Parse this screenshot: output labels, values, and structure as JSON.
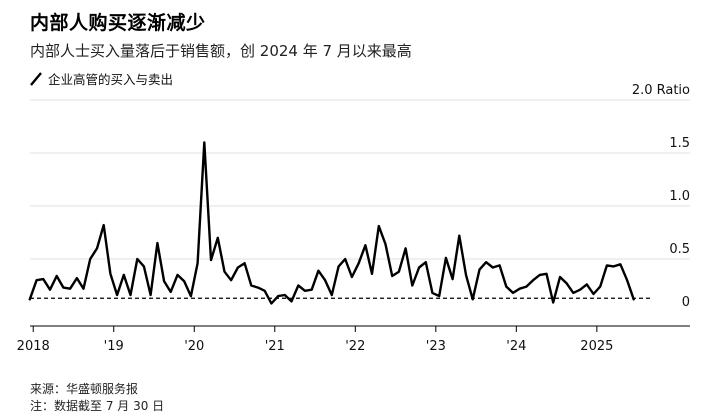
{
  "title": "内部人购买逐渐减少",
  "subtitle": "内部人士买入量落后于销售额，创 2024 年 7 月以来最高",
  "legend_label": "企业高管的买入与卖出",
  "source": "来源：华盛顿服务报",
  "note": "注：数据截至 7 月 30 日",
  "colors": {
    "line": "#000000",
    "reference": "#000000",
    "grid": "#e0e0e0",
    "axis": "#000000"
  },
  "chart_data": {
    "type": "line",
    "title": "内部人购买逐渐减少",
    "ylabel": "Ratio",
    "ylim": [
      -0.15,
      2.0
    ],
    "xlim": [
      2017.96,
      2025.66
    ],
    "grid": true,
    "legend_position": "top-left",
    "y_ticks": [
      {
        "value": 2.0,
        "label": "2.0 Ratio"
      },
      {
        "value": 1.5,
        "label": "1.5"
      },
      {
        "value": 1.0,
        "label": "1.0"
      },
      {
        "value": 0.5,
        "label": "0.5"
      },
      {
        "value": 0,
        "label": "0"
      }
    ],
    "x_ticks": [
      {
        "value": 2018,
        "label": "2018"
      },
      {
        "value": 2019,
        "label": "'19"
      },
      {
        "value": 2020,
        "label": "'20"
      },
      {
        "value": 2021,
        "label": "'21"
      },
      {
        "value": 2022,
        "label": "'22"
      },
      {
        "value": 2023,
        "label": "'23"
      },
      {
        "value": 2024,
        "label": "'24"
      },
      {
        "value": 2025,
        "label": "2025"
      }
    ],
    "reference_line": {
      "value": 0.13,
      "style": "dashed"
    },
    "series": [
      {
        "name": "企业高管的买入与卖出",
        "x": [
          2017.958,
          2018.042,
          2018.125,
          2018.208,
          2018.292,
          2018.375,
          2018.458,
          2018.542,
          2018.625,
          2018.708,
          2018.792,
          2018.875,
          2018.958,
          2019.042,
          2019.125,
          2019.208,
          2019.292,
          2019.375,
          2019.458,
          2019.542,
          2019.625,
          2019.708,
          2019.792,
          2019.875,
          2019.958,
          2020.042,
          2020.125,
          2020.208,
          2020.292,
          2020.375,
          2020.458,
          2020.542,
          2020.625,
          2020.708,
          2020.792,
          2020.875,
          2020.958,
          2021.042,
          2021.125,
          2021.208,
          2021.292,
          2021.375,
          2021.458,
          2021.542,
          2021.625,
          2021.708,
          2021.792,
          2021.875,
          2021.958,
          2022.042,
          2022.125,
          2022.208,
          2022.292,
          2022.375,
          2022.458,
          2022.542,
          2022.625,
          2022.708,
          2022.792,
          2022.875,
          2022.958,
          2023.042,
          2023.125,
          2023.208,
          2023.292,
          2023.375,
          2023.458,
          2023.542,
          2023.625,
          2023.708,
          2023.792,
          2023.875,
          2023.958,
          2024.042,
          2024.125,
          2024.208,
          2024.292,
          2024.375,
          2024.458,
          2024.542,
          2024.625,
          2024.708,
          2024.792,
          2024.875,
          2024.958,
          2025.042,
          2025.125,
          2025.208,
          2025.292,
          2025.375,
          2025.458
        ],
        "values": [
          0.12,
          0.3,
          0.31,
          0.21,
          0.34,
          0.23,
          0.22,
          0.32,
          0.22,
          0.5,
          0.6,
          0.82,
          0.36,
          0.16,
          0.35,
          0.16,
          0.5,
          0.43,
          0.16,
          0.65,
          0.29,
          0.19,
          0.35,
          0.29,
          0.15,
          0.46,
          1.6,
          0.49,
          0.7,
          0.38,
          0.3,
          0.42,
          0.46,
          0.25,
          0.23,
          0.2,
          0.08,
          0.15,
          0.16,
          0.1,
          0.25,
          0.2,
          0.21,
          0.39,
          0.3,
          0.16,
          0.43,
          0.5,
          0.33,
          0.46,
          0.63,
          0.36,
          0.81,
          0.64,
          0.34,
          0.38,
          0.6,
          0.25,
          0.42,
          0.47,
          0.18,
          0.15,
          0.51,
          0.31,
          0.72,
          0.35,
          0.12,
          0.4,
          0.47,
          0.42,
          0.44,
          0.24,
          0.18,
          0.22,
          0.24,
          0.3,
          0.35,
          0.36,
          0.09,
          0.33,
          0.27,
          0.18,
          0.21,
          0.26,
          0.17,
          0.24,
          0.44,
          0.43,
          0.45,
          0.3,
          0.12
        ]
      }
    ]
  }
}
